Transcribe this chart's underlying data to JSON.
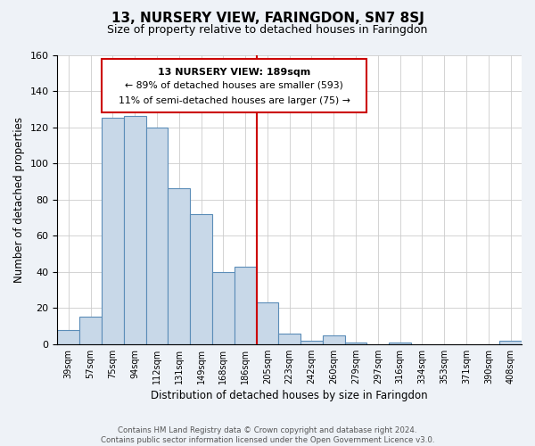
{
  "title": "13, NURSERY VIEW, FARINGDON, SN7 8SJ",
  "subtitle": "Size of property relative to detached houses in Faringdon",
  "xlabel": "Distribution of detached houses by size in Faringdon",
  "ylabel": "Number of detached properties",
  "bar_labels": [
    "39sqm",
    "57sqm",
    "75sqm",
    "94sqm",
    "112sqm",
    "131sqm",
    "149sqm",
    "168sqm",
    "186sqm",
    "205sqm",
    "223sqm",
    "242sqm",
    "260sqm",
    "279sqm",
    "297sqm",
    "316sqm",
    "334sqm",
    "353sqm",
    "371sqm",
    "390sqm",
    "408sqm"
  ],
  "bar_values": [
    8,
    15,
    125,
    126,
    120,
    86,
    72,
    40,
    43,
    23,
    6,
    2,
    5,
    1,
    0,
    1,
    0,
    0,
    0,
    0,
    2
  ],
  "bar_color": "#c8d8e8",
  "bar_edge_color": "#5b8db8",
  "ylim": [
    0,
    160
  ],
  "yticks": [
    0,
    20,
    40,
    60,
    80,
    100,
    120,
    140,
    160
  ],
  "vline_bin_index": 8,
  "vline_color": "#cc0000",
  "ann_line1": "13 NURSERY VIEW: 189sqm",
  "ann_line2": "← 89% of detached houses are smaller (593)",
  "ann_line3": "11% of semi-detached houses are larger (75) →",
  "footer_text": "Contains HM Land Registry data © Crown copyright and database right 2024.\nContains public sector information licensed under the Open Government Licence v3.0.",
  "bg_color": "#eef2f7",
  "plot_bg_color": "#ffffff",
  "grid_color": "#cccccc"
}
